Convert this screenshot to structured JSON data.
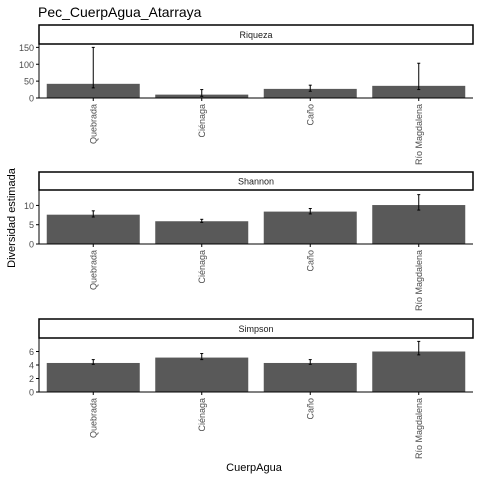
{
  "title": "Pec_CuerpAgua_Atarraya",
  "xlabel": "CuerpAgua",
  "ylabel": "Diversidad estimada",
  "colors": {
    "bar": "#595959",
    "axis": "#000000",
    "tick_text": "#4d4d4d",
    "strip_fill": "#ffffff"
  },
  "chart_data": [
    {
      "type": "bar",
      "title": "Riqueza",
      "categories": [
        "Quebrada",
        "Ciénaga",
        "Caño",
        "Río Magdalena"
      ],
      "values": [
        42,
        10,
        27,
        36
      ],
      "error_low": [
        30,
        5,
        20,
        25
      ],
      "error_high": [
        150,
        25,
        38,
        103
      ],
      "ylim": [
        0,
        160
      ],
      "yticks": [
        0,
        50,
        100,
        150
      ]
    },
    {
      "type": "bar",
      "title": "Shannon",
      "categories": [
        "Quebrada",
        "Ciénaga",
        "Caño",
        "Río Magdalena"
      ],
      "values": [
        7.6,
        5.9,
        8.4,
        10.1
      ],
      "error_low": [
        7.0,
        5.6,
        7.8,
        8.8
      ],
      "error_high": [
        8.6,
        6.4,
        9.2,
        12.8
      ],
      "ylim": [
        0,
        14
      ],
      "yticks": [
        0,
        5,
        10
      ]
    },
    {
      "type": "bar",
      "title": "Simpson",
      "categories": [
        "Quebrada",
        "Ciénaga",
        "Caño",
        "Río Magdalena"
      ],
      "values": [
        4.3,
        5.1,
        4.3,
        6.0
      ],
      "error_low": [
        4.1,
        4.8,
        4.1,
        5.5
      ],
      "error_high": [
        4.8,
        5.7,
        4.8,
        7.5
      ],
      "ylim": [
        0,
        8
      ],
      "yticks": [
        0,
        2,
        4,
        6
      ]
    }
  ]
}
